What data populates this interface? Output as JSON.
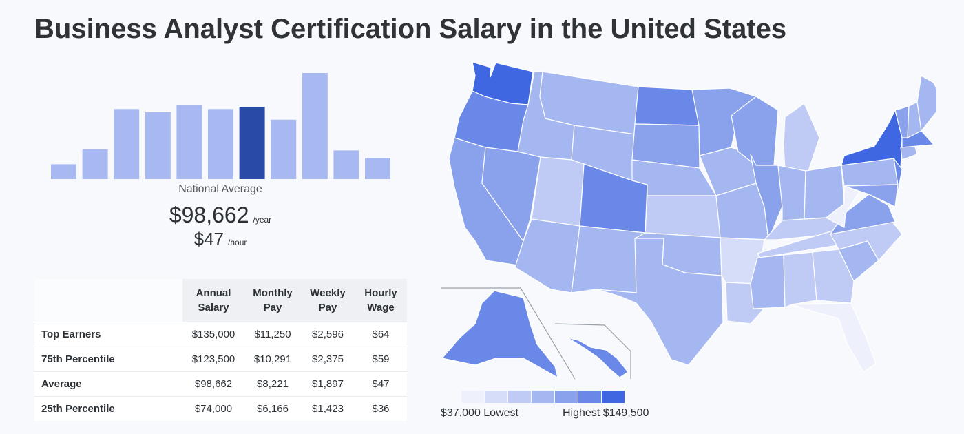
{
  "title": "Business Analyst Certification Salary in the United States",
  "national_average_label": "National Average",
  "salary": {
    "annual": "$98,662",
    "annual_unit": "/year",
    "hourly": "$47",
    "hourly_unit": "/hour"
  },
  "table": {
    "headers": [
      "",
      "Annual Salary",
      "Monthly Pay",
      "Weekly Pay",
      "Hourly Wage"
    ],
    "rows": [
      {
        "label": "Top Earners",
        "annual": "$135,000",
        "monthly": "$11,250",
        "weekly": "$2,596",
        "hourly": "$64"
      },
      {
        "label": "75th Percentile",
        "annual": "$123,500",
        "monthly": "$10,291",
        "weekly": "$2,375",
        "hourly": "$59"
      },
      {
        "label": "Average",
        "annual": "$98,662",
        "monthly": "$8,221",
        "weekly": "$1,897",
        "hourly": "$47"
      },
      {
        "label": "25th Percentile",
        "annual": "$74,000",
        "monthly": "$6,166",
        "weekly": "$1,423",
        "hourly": "$36"
      }
    ]
  },
  "legend": {
    "low_label": "$37,000 Lowest",
    "high_label": "Highest $149,500",
    "colors": [
      "#eef1fc",
      "#d6ddf8",
      "#bfcbf5",
      "#a5b7f0",
      "#8aa2ec",
      "#6a88e8",
      "#3f67e2"
    ]
  },
  "chart_data": [
    {
      "type": "bar",
      "title": "",
      "relative_values": [
        14,
        28,
        66,
        63,
        70,
        66,
        68,
        56,
        100,
        27,
        20
      ],
      "highlight_index": 6,
      "colors": {
        "bar": "#a8b8f0",
        "highlight": "#2a4aa8"
      }
    },
    {
      "type": "heatmap",
      "title": "",
      "scale": {
        "min": 37000,
        "max": 149500
      },
      "state_levels": {
        "WA": 7,
        "OR": 6,
        "CA": 5,
        "NV": 5,
        "ID": 4,
        "MT": 4,
        "WY": 4,
        "UT": 3,
        "AZ": 4,
        "CO": 6,
        "NM": 4,
        "ND": 6,
        "SD": 5,
        "NE": 4,
        "KS": 3,
        "OK": 4,
        "TX": 4,
        "MN": 5,
        "IA": 4,
        "MO": 4,
        "AR": 2,
        "LA": 3,
        "WI": 5,
        "IL": 5,
        "MI": 3,
        "IN": 4,
        "OH": 4,
        "KY": 3,
        "TN": 3,
        "MS": 4,
        "AL": 3,
        "GA": 3,
        "FL": 1,
        "SC": 4,
        "NC": 3,
        "VA": 5,
        "WV": 1,
        "PA": 4,
        "NY": 7,
        "NJ": 6,
        "ME": 4,
        "NH": 4,
        "VT": 5,
        "MA": 6,
        "CT": 4,
        "MD": 5,
        "AK": 6,
        "HI": 6
      }
    }
  ]
}
